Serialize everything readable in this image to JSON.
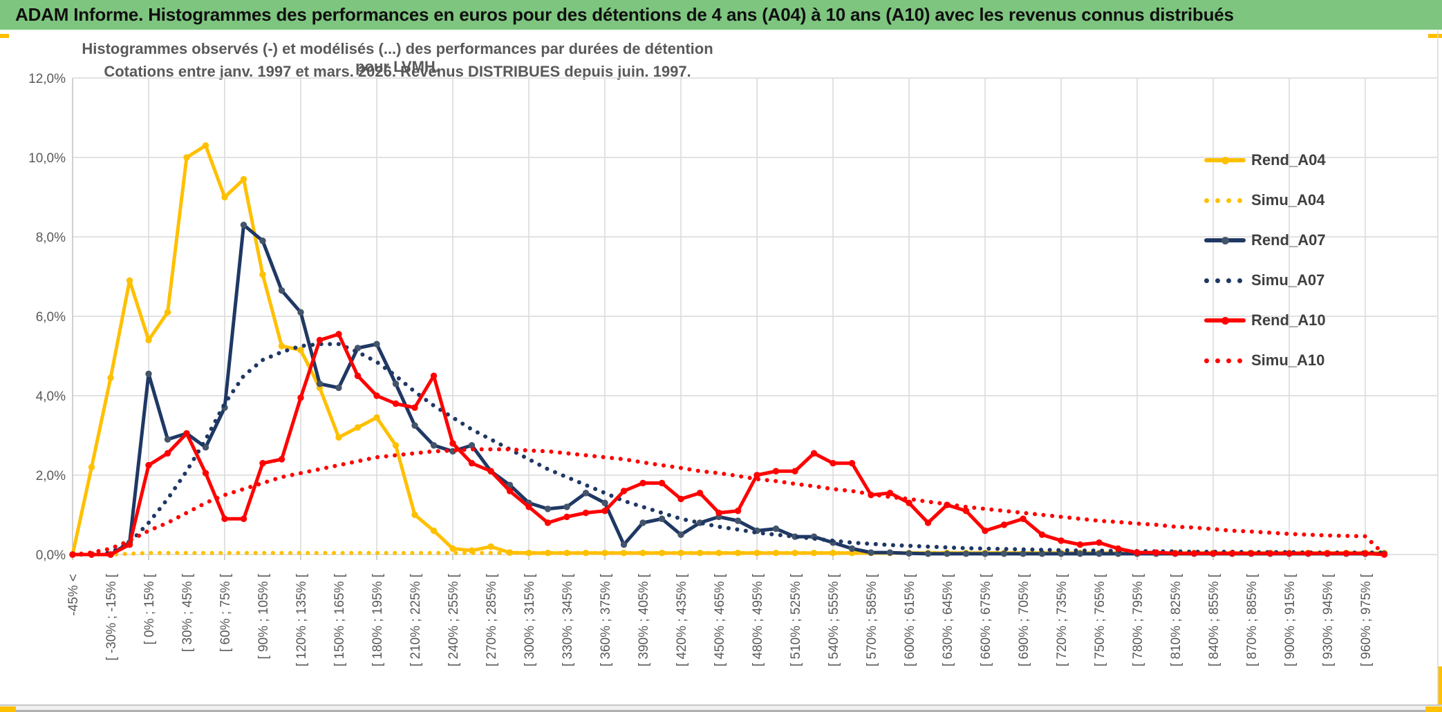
{
  "header": {
    "title": "ADAM Informe. Histogrammes des performances en euros pour des détentions de 4 ans (A04) à 10 ans (A10) avec les revenus connus distribués"
  },
  "chart": {
    "title_line1": "Histogrammes observés (-) et modélisés (...) des performances par durées de détention pour LVMH.",
    "title_line2": "Cotations entre janv. 1997 et mars. 2026. Revenus DISTRIBUES depuis juin. 1997."
  },
  "chart_data": {
    "type": "line",
    "title": "Histogrammes observés (-) et modélisés (...) des performances par durées de détention pour LVMH. Cotations entre janv. 1997 et mars. 2026. Revenus DISTRIBUES depuis juin. 1997.",
    "grid": true,
    "n_points": 70,
    "x_axis": {
      "bin_width_pct": 15,
      "labels_every_other_bin": 2,
      "labels": [
        "-45% <",
        "[ -30% ; -15% [",
        "[ 0% ; 15% [",
        "[ 30% ; 45% [",
        "[ 60% ; 75% [",
        "[ 90% ; 105% [",
        "[ 120% ; 135% [",
        "[ 150% ; 165% [",
        "[ 180% ; 195% [",
        "[ 210% ; 225% [",
        "[ 240% ; 255% [",
        "[ 270% ; 285% [",
        "[ 300% ; 315% [",
        "[ 330% ; 345% [",
        "[ 360% ; 375% [",
        "[ 390% ; 405% [",
        "[ 420% ; 435% [",
        "[ 450% ; 465% [",
        "[ 480% ; 495% [",
        "[ 510% ; 525% [",
        "[ 540% ; 555% [",
        "[ 570% ; 585% [",
        "[ 600% ; 615% [",
        "[ 630% ; 645% [",
        "[ 660% ; 675% [",
        "[ 690% ; 705% [",
        "[ 720% ; 735% [",
        "[ 750% ; 765% [",
        "[ 780% ; 795% [",
        "[ 810% ; 825% [",
        "[ 840% ; 855% [",
        "[ 870% ; 885% [",
        "[ 900% ; 915% [",
        "[ 930% ; 945% [",
        "[ 960% ; 975% ["
      ]
    },
    "y_axis": {
      "min": 0,
      "max": 12,
      "unit": "%",
      "ticks": [
        "0,0%",
        "2,0%",
        "4,0%",
        "6,0%",
        "8,0%",
        "10,0%",
        "12,0%"
      ]
    },
    "legend_position": "right",
    "series": [
      {
        "name": "Rend_A04",
        "color": "#FFC000",
        "marker_color": "#FFC000",
        "style": "solid",
        "values": [
          0,
          2.2,
          4.45,
          6.9,
          5.4,
          6.1,
          10.0,
          10.3,
          9.0,
          9.45,
          7.05,
          5.25,
          5.15,
          4.2,
          2.95,
          3.2,
          3.45,
          2.75,
          1.0,
          0.6,
          0.15,
          0.1,
          0.2,
          0.05,
          0.04,
          0.04,
          0.04,
          0.04,
          0.04,
          0.04,
          0.04,
          0.04,
          0.04,
          0.04,
          0.04,
          0.04,
          0.04,
          0.04,
          0.04,
          0.04,
          0.04,
          0.04,
          0.04,
          0.04,
          0.04,
          0.04,
          0.04,
          0.04,
          0.04,
          0.04,
          0.04,
          0.04,
          0.04,
          0.04,
          0.04,
          0.04,
          0.04,
          0.04,
          0.04,
          0.04,
          0.04,
          0.04,
          0.04,
          0.04,
          0.04,
          0.04,
          0.04,
          0.04,
          0.04,
          0.04
        ]
      },
      {
        "name": "Simu_A04",
        "color": "#FFC000",
        "style": "dotted",
        "values": [
          0,
          0,
          0,
          0.02,
          0.04,
          0.04,
          0.04,
          0.04,
          0.04,
          0.04,
          0.04,
          0.04,
          0.04,
          0.04,
          0.04,
          0.04,
          0.04,
          0.04,
          0.04,
          0.04,
          0.04,
          0.04,
          0.04,
          0.04,
          0.04,
          0.04,
          0.04,
          0.04,
          0.04,
          0.04,
          0.04,
          0.04,
          0.04,
          0.04,
          0.04,
          0.04,
          0.04,
          0.04,
          0.04,
          0.04,
          0.04,
          0.04,
          0.04,
          0.04,
          0.04,
          0.04,
          0.04,
          0.04,
          0.04,
          0.04,
          0.04,
          0.04,
          0.04,
          0.04,
          0.04,
          0.04,
          0.04,
          0.04,
          0.04,
          0.04,
          0.04,
          0.04,
          0.04,
          0.04,
          0.04,
          0.04,
          0.04,
          0.04,
          0.04,
          0.04
        ]
      },
      {
        "name": "Rend_A07",
        "color": "#1F3864",
        "marker_color": "#44546A",
        "style": "solid",
        "values": [
          0,
          0,
          0,
          0.3,
          4.55,
          2.9,
          3.05,
          2.7,
          3.7,
          8.3,
          7.9,
          6.65,
          6.1,
          4.3,
          4.2,
          5.2,
          5.3,
          4.3,
          3.25,
          2.75,
          2.6,
          2.75,
          2.1,
          1.75,
          1.3,
          1.15,
          1.2,
          1.55,
          1.3,
          0.25,
          0.8,
          0.9,
          0.5,
          0.8,
          0.95,
          0.85,
          0.6,
          0.65,
          0.45,
          0.45,
          0.3,
          0.15,
          0.05,
          0.05,
          0.03,
          0.02,
          0.02,
          0.02,
          0.02,
          0.02,
          0.02,
          0.02,
          0.02,
          0.02,
          0.02,
          0.02,
          0.02,
          0.02,
          0.02,
          0.02,
          0.02,
          0.02,
          0.02,
          0.02,
          0.02,
          0.02,
          0.02,
          0.02,
          0.02,
          0.02
        ]
      },
      {
        "name": "Simu_A07",
        "color": "#1F3864",
        "style": "dotted",
        "values": [
          0,
          0,
          0.05,
          0.3,
          0.8,
          1.4,
          2.1,
          2.9,
          3.8,
          4.5,
          4.9,
          5.1,
          5.25,
          5.3,
          5.3,
          5.1,
          4.85,
          4.5,
          4.1,
          3.75,
          3.45,
          3.15,
          2.9,
          2.65,
          2.4,
          2.15,
          1.95,
          1.75,
          1.55,
          1.35,
          1.2,
          1.05,
          0.9,
          0.8,
          0.7,
          0.63,
          0.55,
          0.5,
          0.45,
          0.4,
          0.35,
          0.3,
          0.27,
          0.24,
          0.22,
          0.2,
          0.18,
          0.16,
          0.15,
          0.14,
          0.13,
          0.12,
          0.11,
          0.1,
          0.1,
          0.09,
          0.09,
          0.08,
          0.08,
          0.07,
          0.07,
          0.07,
          0.06,
          0.06,
          0.06,
          0.05,
          0.05,
          0.05,
          0.05,
          0.05
        ]
      },
      {
        "name": "Rend_A10",
        "color": "#FF0000",
        "marker_color": "#FF0000",
        "style": "solid",
        "values": [
          0,
          0,
          0,
          0.25,
          2.25,
          2.55,
          3.05,
          2.05,
          0.9,
          0.9,
          2.3,
          2.4,
          3.95,
          5.4,
          5.55,
          4.5,
          4.0,
          3.8,
          3.7,
          4.5,
          2.8,
          2.3,
          2.1,
          1.6,
          1.2,
          0.8,
          0.95,
          1.05,
          1.1,
          1.6,
          1.8,
          1.8,
          1.4,
          1.55,
          1.05,
          1.1,
          2.0,
          2.1,
          2.1,
          2.55,
          2.3,
          2.3,
          1.5,
          1.55,
          1.3,
          0.8,
          1.25,
          1.1,
          0.6,
          0.75,
          0.9,
          0.5,
          0.35,
          0.25,
          0.3,
          0.15,
          0.05,
          0.05,
          0.03,
          0.03,
          0.03,
          0.03,
          0.03,
          0.03,
          0.03,
          0.03,
          0.03,
          0.03,
          0.03,
          0
        ]
      },
      {
        "name": "Simu_A10",
        "color": "#FF0000",
        "style": "dotted",
        "values": [
          0,
          0.05,
          0.15,
          0.35,
          0.6,
          0.8,
          1.05,
          1.3,
          1.5,
          1.65,
          1.8,
          1.95,
          2.05,
          2.15,
          2.25,
          2.35,
          2.45,
          2.5,
          2.55,
          2.6,
          2.62,
          2.65,
          2.65,
          2.65,
          2.62,
          2.6,
          2.55,
          2.5,
          2.45,
          2.4,
          2.32,
          2.25,
          2.18,
          2.1,
          2.05,
          1.98,
          1.9,
          1.85,
          1.78,
          1.72,
          1.65,
          1.6,
          1.52,
          1.45,
          1.4,
          1.33,
          1.27,
          1.2,
          1.15,
          1.1,
          1.05,
          1.0,
          0.95,
          0.9,
          0.85,
          0.82,
          0.78,
          0.75,
          0.7,
          0.68,
          0.64,
          0.6,
          0.58,
          0.55,
          0.52,
          0.5,
          0.48,
          0.47,
          0.46,
          0
        ]
      }
    ]
  },
  "legend": {
    "items": [
      {
        "label": "Rend_A04",
        "color": "#FFC000",
        "style": "solid"
      },
      {
        "label": "Simu_A04",
        "color": "#FFC000",
        "style": "dotted"
      },
      {
        "label": "Rend_A07",
        "color": "#1F3864",
        "marker_color": "#44546A",
        "style": "solid"
      },
      {
        "label": "Simu_A07",
        "color": "#1F3864",
        "style": "dotted"
      },
      {
        "label": "Rend_A10",
        "color": "#FF0000",
        "style": "solid"
      },
      {
        "label": "Simu_A10",
        "color": "#FF0000",
        "style": "dotted"
      }
    ]
  },
  "colors": {
    "titlebar_bg": "#7EC57F",
    "accent": "#FFC000",
    "gridline": "#D9D9D9",
    "axis_text": "#595959",
    "title_text": "#595959"
  }
}
